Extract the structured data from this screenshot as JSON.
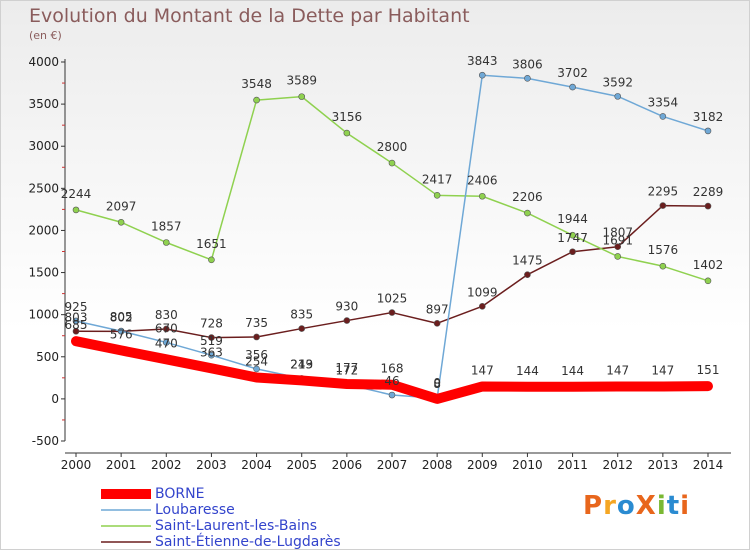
{
  "header": {
    "title": "Evolution du Montant de la Dette par Habitant",
    "subtitle": "(en €)"
  },
  "logo": {
    "text": "ProXiti",
    "colors": [
      "#e8661c",
      "#f5a623",
      "#2a8bd1",
      "#e8661c",
      "#7ab833",
      "#2a8bd1",
      "#e8661c"
    ]
  },
  "chart_data": {
    "type": "line",
    "categories": [
      "2000",
      "2001",
      "2002",
      "2003",
      "2004",
      "2005",
      "2006",
      "2007",
      "2008",
      "2009",
      "2010",
      "2011",
      "2012",
      "2013",
      "2014"
    ],
    "ylim": [
      -500,
      4000
    ],
    "yticks": [
      -500,
      0,
      500,
      1000,
      1500,
      2000,
      2500,
      3000,
      3500,
      4000
    ],
    "grid": false,
    "legend": "bottom-left",
    "series": [
      {
        "name": "BORNE",
        "color": "#ff0000",
        "values": [
          685,
          576,
          470,
          363,
          254,
          219,
          177,
          168,
          0,
          147,
          144,
          144,
          147,
          147,
          151
        ]
      },
      {
        "name": "Loubaresse",
        "color": "#6fa8d6",
        "values": [
          925,
          805,
          670,
          519,
          356,
          243,
          172,
          46,
          8,
          3843,
          3806,
          3702,
          3592,
          3354,
          3182
        ]
      },
      {
        "name": "Saint-Laurent-les-Bains",
        "color": "#8fd14f",
        "values": [
          2244,
          2097,
          1857,
          1651,
          3548,
          3589,
          3156,
          2800,
          2417,
          2406,
          2206,
          1944,
          1691,
          1576,
          1402
        ]
      },
      {
        "name": "Saint-Étienne-de-Lugdarès",
        "color": "#6b1e1e",
        "values": [
          803,
          802,
          830,
          728,
          735,
          835,
          930,
          1025,
          897,
          1099,
          1475,
          1747,
          1807,
          2295,
          2289
        ]
      }
    ]
  }
}
